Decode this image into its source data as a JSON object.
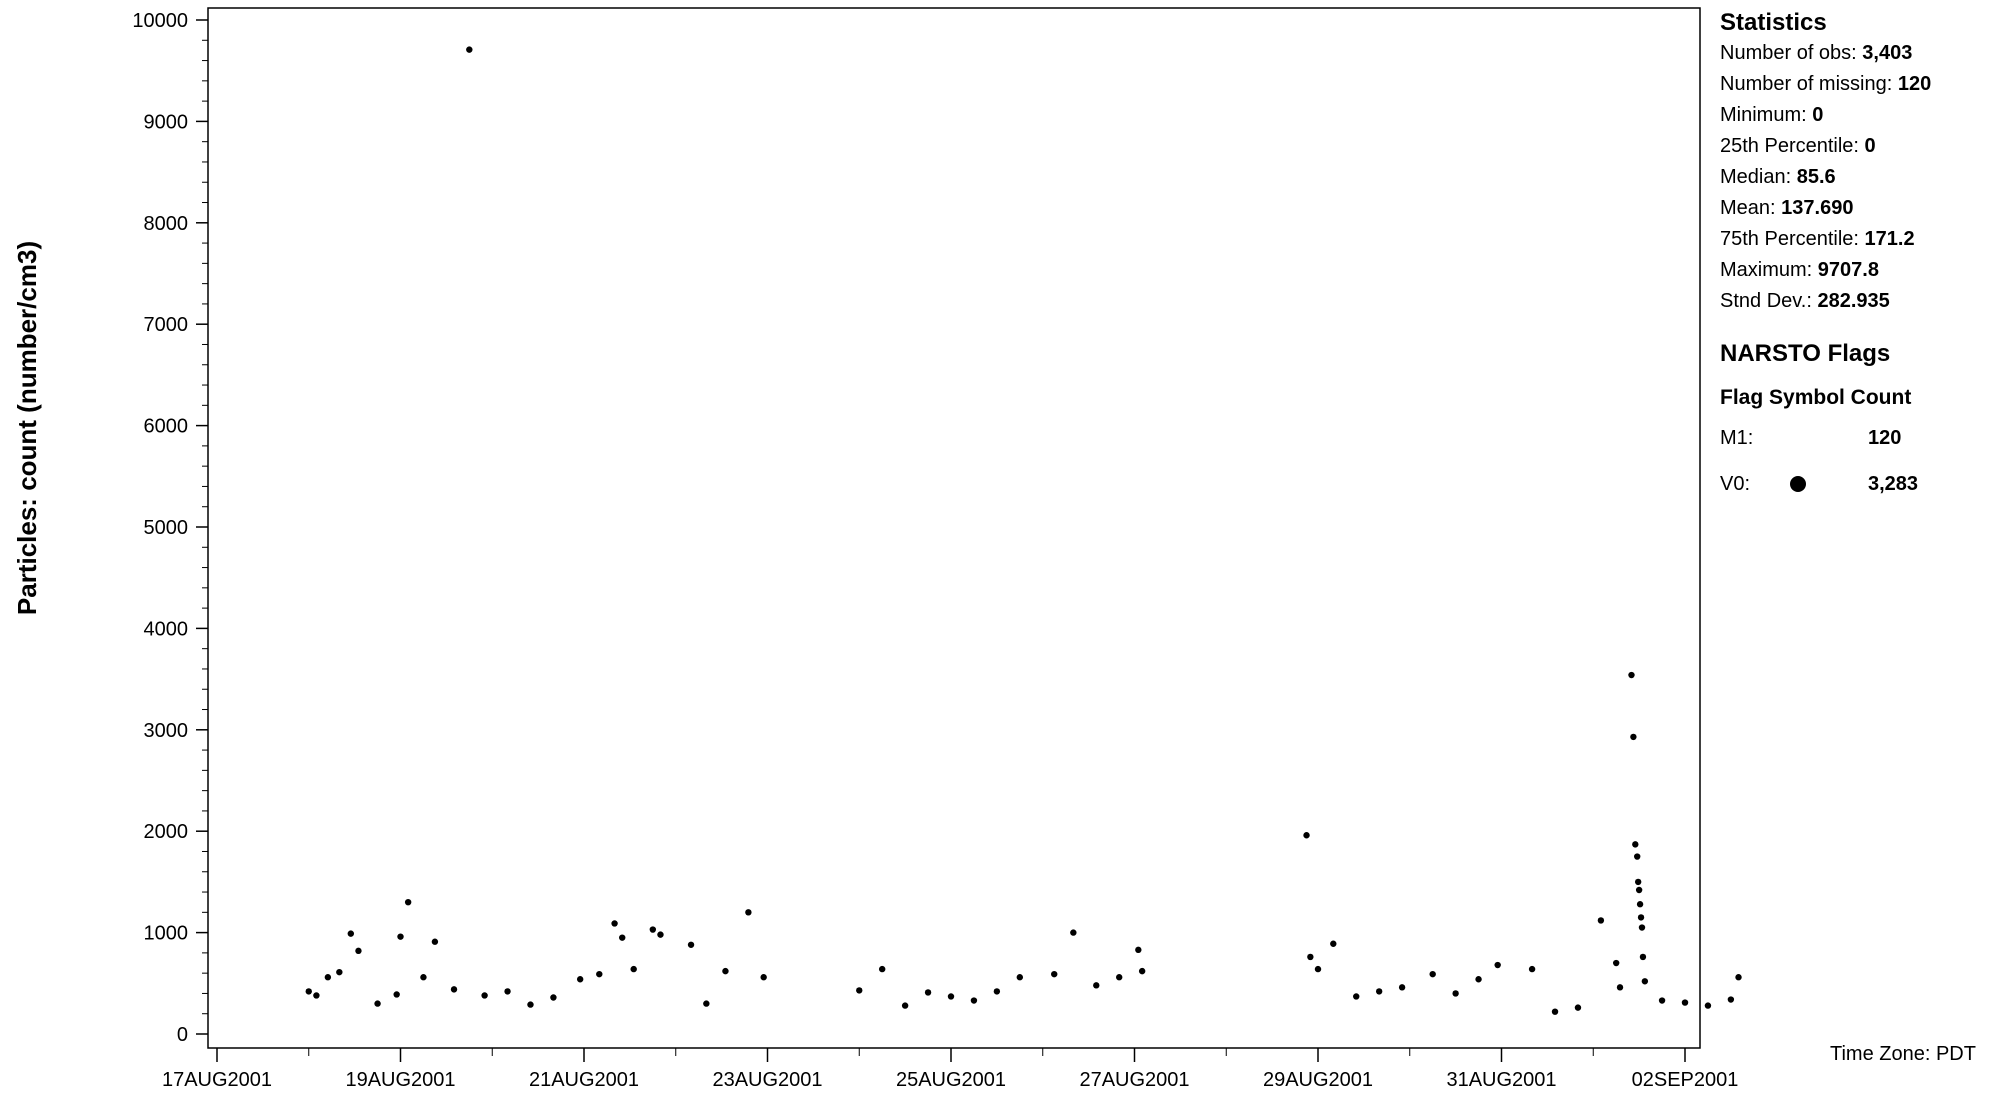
{
  "chart_data": {
    "type": "scatter",
    "ylabel": "Particles: count (number/cm3)",
    "ylim": [
      0,
      10000
    ],
    "yticks": [
      0,
      1000,
      2000,
      3000,
      4000,
      5000,
      6000,
      7000,
      8000,
      9000,
      10000
    ],
    "xlim": [
      "2001-08-17",
      "2001-09-02"
    ],
    "xticks": [
      "17AUG2001",
      "19AUG2001",
      "21AUG2001",
      "23AUG2001",
      "25AUG2001",
      "27AUG2001",
      "29AUG2001",
      "31AUG2001",
      "02SEP2001"
    ],
    "marker_color": "#000000",
    "grid": false,
    "points": [
      {
        "x": "2001-08-18 00:00",
        "y": 420
      },
      {
        "x": "2001-08-18 02:00",
        "y": 380
      },
      {
        "x": "2001-08-18 05:00",
        "y": 560
      },
      {
        "x": "2001-08-18 08:00",
        "y": 610
      },
      {
        "x": "2001-08-18 11:00",
        "y": 990
      },
      {
        "x": "2001-08-18 13:00",
        "y": 820
      },
      {
        "x": "2001-08-18 18:00",
        "y": 300
      },
      {
        "x": "2001-08-18 23:00",
        "y": 390
      },
      {
        "x": "2001-08-19 00:00",
        "y": 960
      },
      {
        "x": "2001-08-19 02:00",
        "y": 1300
      },
      {
        "x": "2001-08-19 06:00",
        "y": 560
      },
      {
        "x": "2001-08-19 09:00",
        "y": 910
      },
      {
        "x": "2001-08-19 14:00",
        "y": 440
      },
      {
        "x": "2001-08-19 18:00",
        "y": 9707.8
      },
      {
        "x": "2001-08-19 22:00",
        "y": 380
      },
      {
        "x": "2001-08-20 04:00",
        "y": 420
      },
      {
        "x": "2001-08-20 10:00",
        "y": 290
      },
      {
        "x": "2001-08-20 16:00",
        "y": 360
      },
      {
        "x": "2001-08-20 23:00",
        "y": 540
      },
      {
        "x": "2001-08-21 04:00",
        "y": 590
      },
      {
        "x": "2001-08-21 08:00",
        "y": 1090
      },
      {
        "x": "2001-08-21 10:00",
        "y": 950
      },
      {
        "x": "2001-08-21 13:00",
        "y": 640
      },
      {
        "x": "2001-08-21 18:00",
        "y": 1030
      },
      {
        "x": "2001-08-21 20:00",
        "y": 980
      },
      {
        "x": "2001-08-22 04:00",
        "y": 880
      },
      {
        "x": "2001-08-22 08:00",
        "y": 300
      },
      {
        "x": "2001-08-22 13:00",
        "y": 620
      },
      {
        "x": "2001-08-22 19:00",
        "y": 1200
      },
      {
        "x": "2001-08-22 23:00",
        "y": 560
      },
      {
        "x": "2001-08-24 00:00",
        "y": 430
      },
      {
        "x": "2001-08-24 06:00",
        "y": 640
      },
      {
        "x": "2001-08-24 12:00",
        "y": 280
      },
      {
        "x": "2001-08-24 18:00",
        "y": 410
      },
      {
        "x": "2001-08-25 00:00",
        "y": 370
      },
      {
        "x": "2001-08-25 06:00",
        "y": 330
      },
      {
        "x": "2001-08-25 12:00",
        "y": 420
      },
      {
        "x": "2001-08-25 18:00",
        "y": 560
      },
      {
        "x": "2001-08-26 03:00",
        "y": 590
      },
      {
        "x": "2001-08-26 08:00",
        "y": 1000
      },
      {
        "x": "2001-08-26 14:00",
        "y": 480
      },
      {
        "x": "2001-08-26 20:00",
        "y": 560
      },
      {
        "x": "2001-08-27 01:00",
        "y": 830
      },
      {
        "x": "2001-08-27 02:00",
        "y": 620
      },
      {
        "x": "2001-08-28 21:00",
        "y": 1960
      },
      {
        "x": "2001-08-28 22:00",
        "y": 760
      },
      {
        "x": "2001-08-29 00:00",
        "y": 640
      },
      {
        "x": "2001-08-29 04:00",
        "y": 890
      },
      {
        "x": "2001-08-29 10:00",
        "y": 370
      },
      {
        "x": "2001-08-29 16:00",
        "y": 420
      },
      {
        "x": "2001-08-29 22:00",
        "y": 460
      },
      {
        "x": "2001-08-30 06:00",
        "y": 590
      },
      {
        "x": "2001-08-30 12:00",
        "y": 400
      },
      {
        "x": "2001-08-30 18:00",
        "y": 540
      },
      {
        "x": "2001-08-30 23:00",
        "y": 680
      },
      {
        "x": "2001-08-31 08:00",
        "y": 640
      },
      {
        "x": "2001-08-31 14:00",
        "y": 220
      },
      {
        "x": "2001-08-31 20:00",
        "y": 260
      },
      {
        "x": "2001-09-01 02:00",
        "y": 1120
      },
      {
        "x": "2001-09-01 06:00",
        "y": 700
      },
      {
        "x": "2001-09-01 07:00",
        "y": 460
      },
      {
        "x": "2001-09-01 10:00",
        "y": 3540
      },
      {
        "x": "2001-09-01 10:30",
        "y": 2930
      },
      {
        "x": "2001-09-01 11:00",
        "y": 1870
      },
      {
        "x": "2001-09-01 11:30",
        "y": 1750
      },
      {
        "x": "2001-09-01 11:45",
        "y": 1500
      },
      {
        "x": "2001-09-01 12:00",
        "y": 1420
      },
      {
        "x": "2001-09-01 12:15",
        "y": 1280
      },
      {
        "x": "2001-09-01 12:30",
        "y": 1150
      },
      {
        "x": "2001-09-01 12:45",
        "y": 1050
      },
      {
        "x": "2001-09-01 13:00",
        "y": 760
      },
      {
        "x": "2001-09-01 13:30",
        "y": 520
      },
      {
        "x": "2001-09-01 18:00",
        "y": 330
      },
      {
        "x": "2001-09-02 00:00",
        "y": 310
      },
      {
        "x": "2001-09-02 06:00",
        "y": 280
      },
      {
        "x": "2001-09-02 12:00",
        "y": 340
      },
      {
        "x": "2001-09-02 14:00",
        "y": 560
      }
    ]
  },
  "statistics": {
    "heading": "Statistics",
    "rows": [
      {
        "label": "Number of obs: ",
        "value": "3,403"
      },
      {
        "label": "Number of missing: ",
        "value": "120"
      },
      {
        "label": "Minimum: ",
        "value": "0"
      },
      {
        "label": "25th Percentile: ",
        "value": "0"
      },
      {
        "label": "Median: ",
        "value": "85.6"
      },
      {
        "label": "Mean: ",
        "value": "137.690"
      },
      {
        "label": "75th Percentile: ",
        "value": "171.2"
      },
      {
        "label": "Maximum: ",
        "value": "9707.8"
      },
      {
        "label": "Stnd Dev.: ",
        "value": "282.935"
      }
    ]
  },
  "flags": {
    "heading": "NARSTO Flags",
    "columns": "Flag Symbol Count",
    "rows": [
      {
        "code": "M1:",
        "symbol": "none",
        "count": "120"
      },
      {
        "code": "V0:",
        "symbol": "filled-circle",
        "count": "3,283"
      }
    ]
  },
  "timezone": "Time Zone: PDT"
}
